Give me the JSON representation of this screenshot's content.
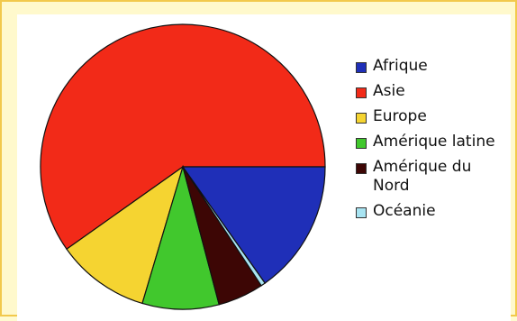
{
  "chart_data": {
    "type": "pie",
    "categories": [
      "Afrique",
      "Asie",
      "Europe",
      "Amérique latine",
      "Amérique du\nNord",
      "Océanie"
    ],
    "values": [
      15.2,
      59.8,
      10.6,
      8.7,
      5.2,
      0.5
    ],
    "colors": [
      "#1f2fb8",
      "#f22a18",
      "#f5d431",
      "#41c82d",
      "#3d0605",
      "#a8e4f2"
    ],
    "start_order": [
      "Asie",
      "Europe",
      "Amérique latine",
      "Amérique du\nNord",
      "Océanie",
      "Afrique"
    ],
    "legend_position": "right"
  }
}
